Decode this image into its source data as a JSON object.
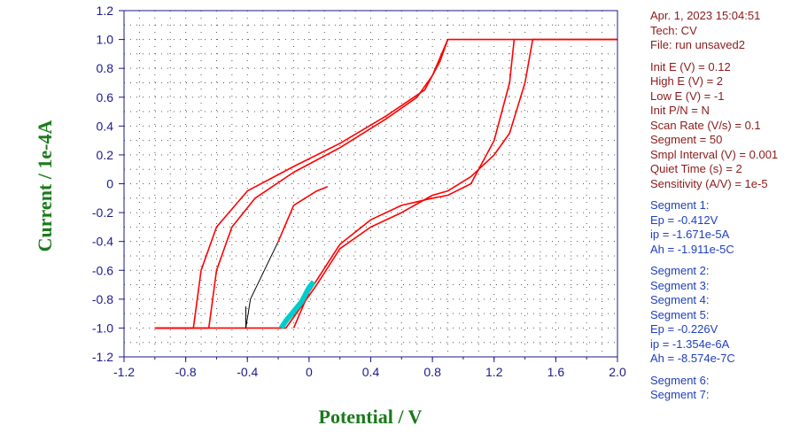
{
  "chart_data": {
    "type": "line",
    "xlabel": "Potential / V",
    "ylabel": "Current / 1e-4A",
    "xlim": [
      -1.2,
      2.0
    ],
    "ylim": [
      -1.2,
      1.2
    ],
    "x_ticks": [
      "-1.2",
      "-0.8",
      "-0.4",
      "0",
      "0.4",
      "0.8",
      "1.2",
      "1.6",
      "2.0"
    ],
    "y_ticks": [
      "1.2",
      "1.0",
      "0.8",
      "0.6",
      "0.4",
      "0.2",
      "0",
      "-0.2",
      "-0.4",
      "-0.6",
      "-0.8",
      "-1.0",
      "-1.2"
    ],
    "grid": "dotted",
    "colors": {
      "main": "#ff0000",
      "segment": "#00cccc",
      "start": "#000000",
      "axis": "#1a1a8c",
      "label": "#1a7a1a"
    },
    "series": [
      {
        "color": "#ff0000",
        "points": [
          [
            -1.0,
            -1.0
          ],
          [
            -0.65,
            -1.0
          ],
          [
            -0.6,
            -0.6
          ],
          [
            -0.5,
            -0.3
          ],
          [
            -0.35,
            -0.1
          ],
          [
            -0.1,
            0.08
          ],
          [
            0.2,
            0.25
          ],
          [
            0.5,
            0.45
          ],
          [
            0.7,
            0.6
          ],
          [
            0.8,
            0.75
          ],
          [
            0.9,
            1.0
          ],
          [
            2.0,
            1.0
          ]
        ]
      },
      {
        "color": "#ff0000",
        "points": [
          [
            -1.0,
            -1.0
          ],
          [
            -0.75,
            -1.0
          ],
          [
            -0.7,
            -0.6
          ],
          [
            -0.6,
            -0.3
          ],
          [
            -0.4,
            -0.05
          ],
          [
            -0.1,
            0.12
          ],
          [
            0.2,
            0.28
          ],
          [
            0.5,
            0.47
          ],
          [
            0.75,
            0.65
          ],
          [
            0.85,
            0.85
          ],
          [
            0.9,
            1.0
          ]
        ]
      },
      {
        "color": "#ff0000",
        "points": [
          [
            2.0,
            1.0
          ],
          [
            1.45,
            1.0
          ],
          [
            1.4,
            0.7
          ],
          [
            1.3,
            0.35
          ],
          [
            1.2,
            0.2
          ],
          [
            1.05,
            0.05
          ],
          [
            0.9,
            -0.05
          ],
          [
            0.8,
            -0.08
          ],
          [
            0.6,
            -0.2
          ],
          [
            0.4,
            -0.3
          ],
          [
            0.2,
            -0.45
          ],
          [
            0.05,
            -0.7
          ],
          [
            -0.15,
            -1.0
          ],
          [
            -1.0,
            -1.0
          ]
        ]
      },
      {
        "color": "#ff0000",
        "points": [
          [
            1.33,
            1.0
          ],
          [
            1.3,
            0.7
          ],
          [
            1.2,
            0.3
          ],
          [
            1.05,
            0.0
          ],
          [
            0.9,
            -0.08
          ],
          [
            0.8,
            -0.1
          ],
          [
            0.6,
            -0.15
          ],
          [
            0.4,
            -0.25
          ],
          [
            0.2,
            -0.42
          ],
          [
            0.0,
            -0.75
          ],
          [
            -0.1,
            -1.0
          ]
        ]
      },
      {
        "color": "#000000",
        "points": [
          [
            -0.41,
            -0.85
          ],
          [
            -0.41,
            -1.0
          ],
          [
            -0.38,
            -0.8
          ],
          [
            -0.2,
            -0.4
          ]
        ]
      },
      {
        "color": "#ff0000",
        "points": [
          [
            -0.2,
            -0.4
          ],
          [
            -0.1,
            -0.15
          ],
          [
            0.05,
            -0.05
          ],
          [
            0.12,
            -0.02
          ]
        ]
      },
      {
        "color": "#00cccc",
        "points": [
          [
            -0.18,
            -1.0
          ],
          [
            -0.15,
            -0.95
          ],
          [
            -0.05,
            -0.82
          ],
          [
            0.0,
            -0.72
          ],
          [
            0.03,
            -0.68
          ]
        ]
      }
    ]
  },
  "info": {
    "header": [
      "Apr. 1, 2023   15:04:51",
      "Tech: CV",
      "File: run unsaved2"
    ],
    "params": [
      "Init E (V) = 0.12",
      "High E (V) = 2",
      "Low E (V) = -1",
      "Init P/N = N",
      "Scan Rate (V/s) = 0.1",
      "Segment = 50",
      "Smpl Interval (V) = 0.001",
      "Quiet Time (s) = 2",
      "Sensitivity (A/V) = 1e-5"
    ],
    "results_a": [
      "Segment 1:",
      "Ep = -0.412V",
      "ip = -1.671e-5A",
      "Ah = -1.911e-5C"
    ],
    "results_b": [
      "Segment 2:",
      "Segment 3:",
      "Segment 4:",
      "Segment 5:",
      "Ep = -0.226V",
      "ip = -1.354e-6A",
      "Ah = -8.574e-7C"
    ],
    "results_c": [
      "Segment 6:",
      "Segment 7:"
    ]
  }
}
